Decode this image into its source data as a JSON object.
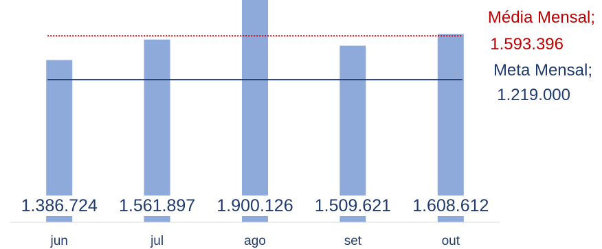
{
  "chart_data": {
    "type": "bar",
    "categories": [
      "jun",
      "jul",
      "ago",
      "set",
      "out"
    ],
    "values": [
      1386724,
      1561897,
      1900126,
      1509621,
      1608612
    ],
    "value_labels": [
      "1.386.724",
      "1.561.897",
      "1.900.126",
      "1.509.621",
      "1.608.612"
    ],
    "ylim": [
      0,
      1900126
    ],
    "reference_lines": [
      {
        "name": "Média Mensal",
        "value": 1593396,
        "label": "1.593.396",
        "style": "dotted",
        "color": "#c00000"
      },
      {
        "name": "Meta Mensal",
        "value": 1219000,
        "label": "1.219.000",
        "style": "solid",
        "color": "#1f3b6f"
      }
    ],
    "bar_color": "#8eaadb",
    "grid": false,
    "title": "",
    "xlabel": "",
    "ylabel": ""
  },
  "annotations": {
    "media_name": "Média Mensal;",
    "media_value": "1.593.396",
    "meta_name": "Meta Mensal;",
    "meta_value": "1.219.000"
  }
}
